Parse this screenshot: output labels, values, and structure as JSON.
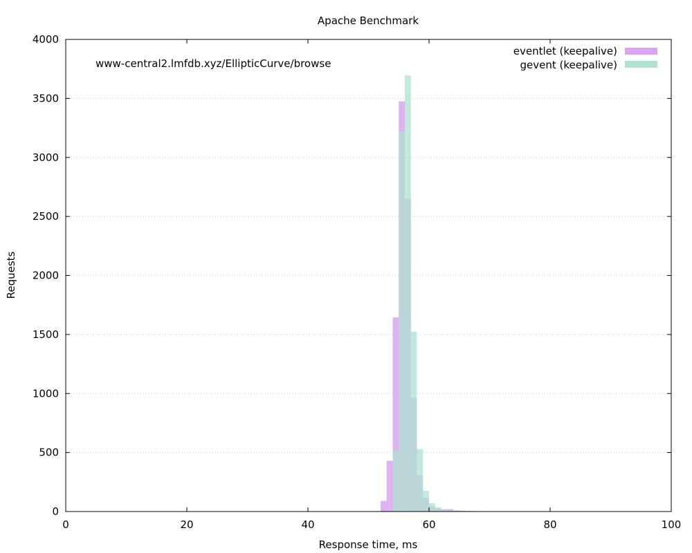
{
  "chart_data": {
    "type": "bar",
    "title": "Apache Benchmark",
    "xlabel": "Response time, ms",
    "ylabel": "Requests",
    "annotation": "www-central2.lmfdb.xyz/EllipticCurve/browse",
    "xlim": [
      0,
      100
    ],
    "ylim": [
      0,
      4000
    ],
    "xticks": [
      0,
      20,
      40,
      60,
      80,
      100
    ],
    "yticks": [
      0,
      500,
      1000,
      1500,
      2000,
      2500,
      3000,
      3500,
      4000
    ],
    "grid": "horizontal-dotted",
    "legend_position": "top-right",
    "bin_width": 1,
    "series": [
      {
        "name": "eventlet (keepalive)",
        "color": "#d8a5ee",
        "bins": [
          {
            "x": 52,
            "y": 90
          },
          {
            "x": 53,
            "y": 430
          },
          {
            "x": 54,
            "y": 1645
          },
          {
            "x": 55,
            "y": 3475
          },
          {
            "x": 56,
            "y": 2650
          },
          {
            "x": 57,
            "y": 965
          },
          {
            "x": 58,
            "y": 310
          },
          {
            "x": 59,
            "y": 115
          },
          {
            "x": 60,
            "y": 45
          },
          {
            "x": 61,
            "y": 25
          },
          {
            "x": 62,
            "y": 20
          },
          {
            "x": 63,
            "y": 20
          },
          {
            "x": 64,
            "y": 8
          },
          {
            "x": 65,
            "y": 6
          },
          {
            "x": 66,
            "y": 5
          },
          {
            "x": 67,
            "y": 3
          }
        ]
      },
      {
        "name": "gevent (keepalive)",
        "color": "#aee2d0",
        "bins": [
          {
            "x": 54,
            "y": 520
          },
          {
            "x": 55,
            "y": 3220
          },
          {
            "x": 56,
            "y": 3695
          },
          {
            "x": 57,
            "y": 1525
          },
          {
            "x": 58,
            "y": 530
          },
          {
            "x": 59,
            "y": 175
          },
          {
            "x": 60,
            "y": 70
          },
          {
            "x": 61,
            "y": 35
          },
          {
            "x": 62,
            "y": 18
          },
          {
            "x": 63,
            "y": 12
          },
          {
            "x": 64,
            "y": 10
          },
          {
            "x": 65,
            "y": 8
          },
          {
            "x": 66,
            "y": 6
          },
          {
            "x": 67,
            "y": 4
          }
        ]
      }
    ]
  }
}
